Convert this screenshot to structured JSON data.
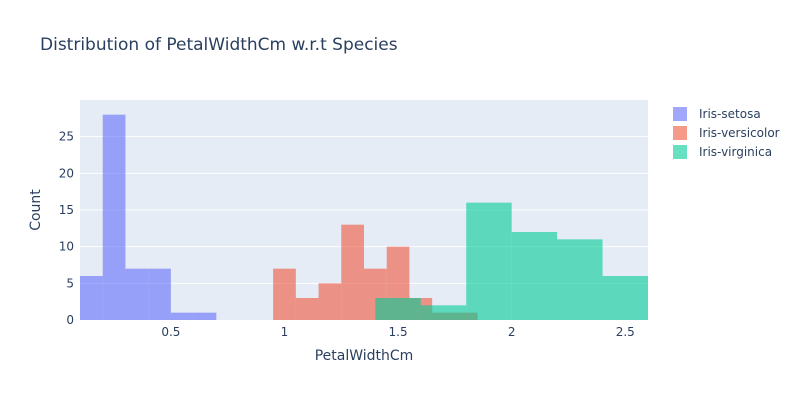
{
  "chart_data": {
    "type": "bar",
    "title": "Distribution of PetalWidthCm w.r.t Species",
    "xlabel": "PetalWidthCm",
    "ylabel": "Count",
    "xlim": [
      0.1,
      2.6
    ],
    "ylim": [
      0,
      30
    ],
    "x_ticks": [
      {
        "value": 0.5,
        "label": "0.5"
      },
      {
        "value": 1,
        "label": "1"
      },
      {
        "value": 1.5,
        "label": "1.5"
      },
      {
        "value": 2,
        "label": "2"
      },
      {
        "value": 2.5,
        "label": "2.5"
      }
    ],
    "y_ticks": [
      {
        "value": 0,
        "label": "0"
      },
      {
        "value": 5,
        "label": "5"
      },
      {
        "value": 10,
        "label": "10"
      },
      {
        "value": 15,
        "label": "15"
      },
      {
        "value": 20,
        "label": "20"
      },
      {
        "value": 25,
        "label": "25"
      }
    ],
    "grid": true,
    "legend_position": "top-right",
    "series": [
      {
        "name": "Iris-setosa",
        "color": "#636efa",
        "opacity": 0.6,
        "bins": [
          {
            "x0": 0.1,
            "x1": 0.2,
            "count": 6
          },
          {
            "x0": 0.2,
            "x1": 0.3,
            "count": 28
          },
          {
            "x0": 0.3,
            "x1": 0.4,
            "count": 7
          },
          {
            "x0": 0.4,
            "x1": 0.5,
            "count": 7
          },
          {
            "x0": 0.5,
            "x1": 0.6,
            "count": 1
          },
          {
            "x0": 0.6,
            "x1": 0.7,
            "count": 1
          }
        ]
      },
      {
        "name": "Iris-versicolor",
        "color": "#ef553b",
        "opacity": 0.6,
        "bins": [
          {
            "x0": 0.95,
            "x1": 1.05,
            "count": 7
          },
          {
            "x0": 1.05,
            "x1": 1.15,
            "count": 3
          },
          {
            "x0": 1.15,
            "x1": 1.25,
            "count": 5
          },
          {
            "x0": 1.25,
            "x1": 1.35,
            "count": 13
          },
          {
            "x0": 1.35,
            "x1": 1.45,
            "count": 7
          },
          {
            "x0": 1.45,
            "x1": 1.55,
            "count": 10
          },
          {
            "x0": 1.55,
            "x1": 1.65,
            "count": 3
          },
          {
            "x0": 1.65,
            "x1": 1.75,
            "count": 1
          },
          {
            "x0": 1.75,
            "x1": 1.85,
            "count": 1
          }
        ]
      },
      {
        "name": "Iris-virginica",
        "color": "#00cc96",
        "opacity": 0.6,
        "bins": [
          {
            "x0": 1.4,
            "x1": 1.6,
            "count": 3
          },
          {
            "x0": 1.6,
            "x1": 1.8,
            "count": 2
          },
          {
            "x0": 1.8,
            "x1": 2.0,
            "count": 16
          },
          {
            "x0": 2.0,
            "x1": 2.2,
            "count": 12
          },
          {
            "x0": 2.2,
            "x1": 2.4,
            "count": 11
          },
          {
            "x0": 2.4,
            "x1": 2.6,
            "count": 6
          }
        ]
      }
    ]
  }
}
